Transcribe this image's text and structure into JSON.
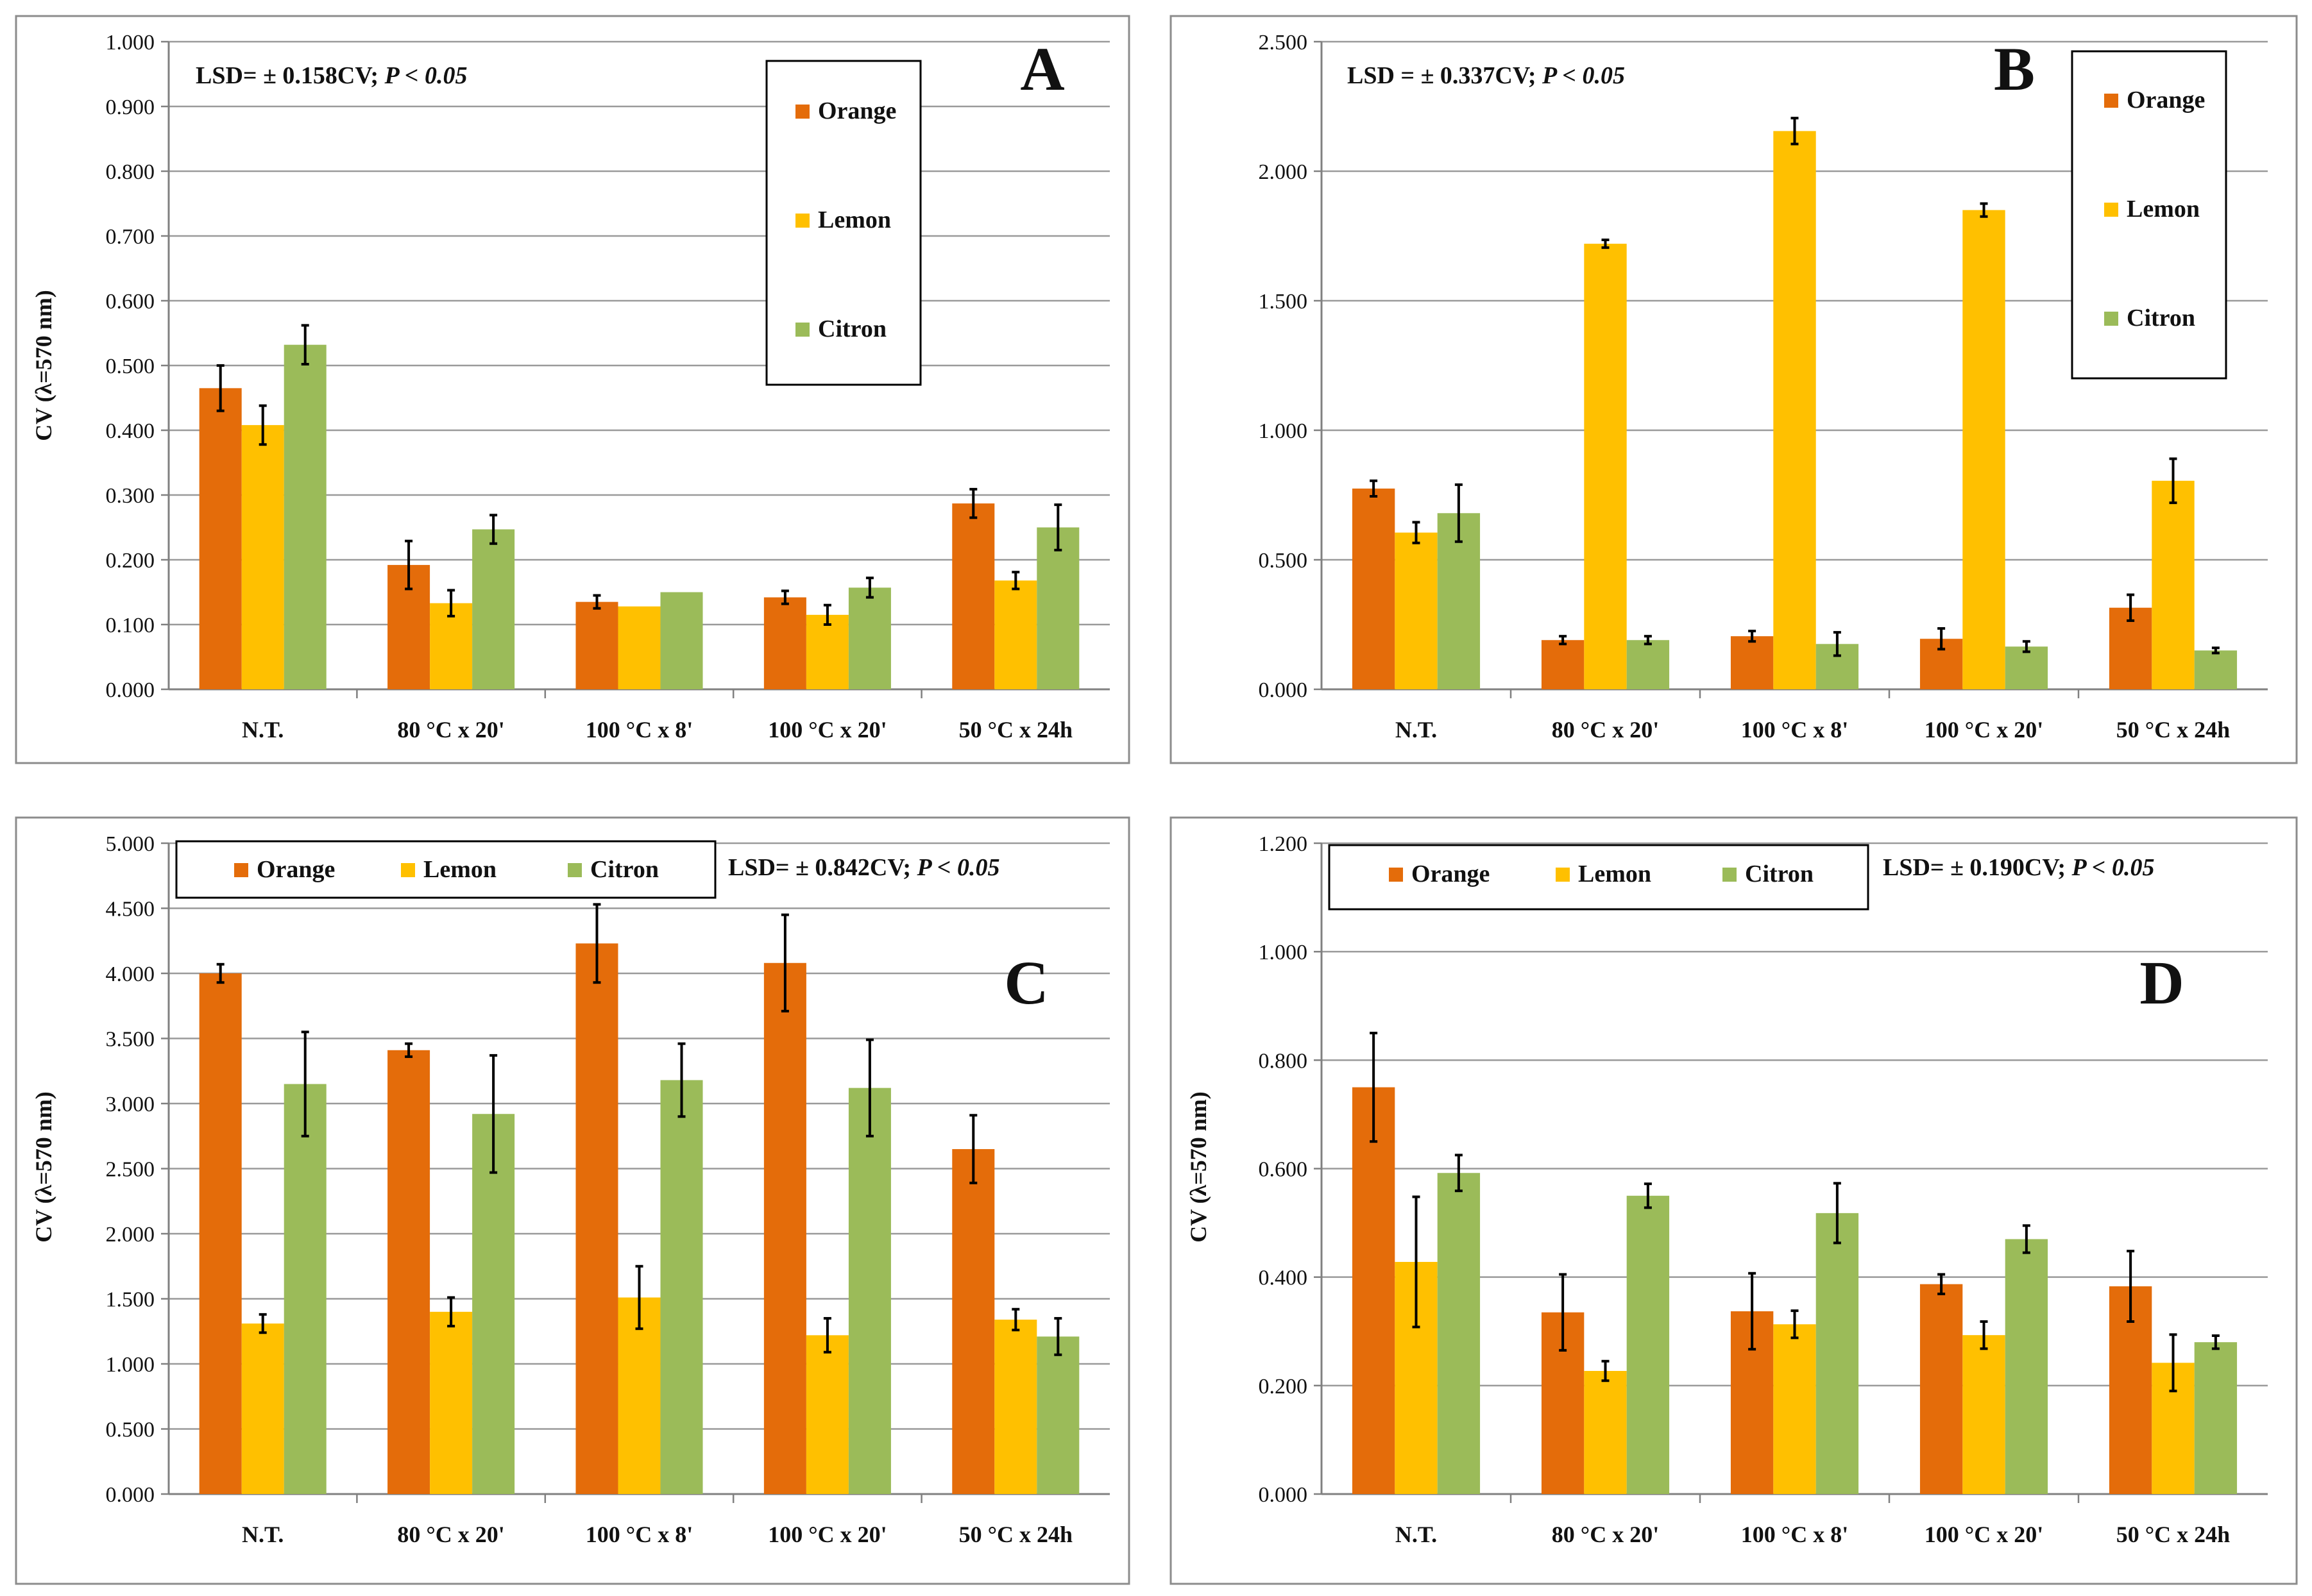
{
  "colors": {
    "Orange": "#e46c0a",
    "Lemon": "#ffc000",
    "Citron": "#9bbb59"
  },
  "series_names": [
    "Orange",
    "Lemon",
    "Citron"
  ],
  "chart_data": [
    {
      "type": "bar",
      "panel": "A",
      "lsd_text": "LSD= ± 0.158CV;",
      "p_text": "P < 0.05",
      "ylabel": "CV (λ=570 nm)",
      "ylim": [
        0,
        1.0
      ],
      "yticks": [
        "0.000",
        "0.100",
        "0.200",
        "0.300",
        "0.400",
        "0.500",
        "0.600",
        "0.700",
        "0.800",
        "0.900",
        "1.000"
      ],
      "categories": [
        "N.T.",
        "80 °C x 20'",
        "100 °C x 8'",
        "100 °C x 20'",
        "50 °C x 24h"
      ],
      "legend": "top-right-vertical",
      "series": [
        {
          "name": "Orange",
          "values": [
            0.465,
            0.192,
            0.135,
            0.142,
            0.287
          ],
          "errors": [
            0.035,
            0.037,
            0.01,
            0.01,
            0.022
          ]
        },
        {
          "name": "Lemon",
          "values": [
            0.408,
            0.133,
            0.128,
            0.115,
            0.168
          ],
          "errors": [
            0.03,
            0.02,
            0.0,
            0.015,
            0.013
          ]
        },
        {
          "name": "Citron",
          "values": [
            0.532,
            0.247,
            0.15,
            0.157,
            0.25
          ],
          "errors": [
            0.03,
            0.022,
            0.0,
            0.015,
            0.035
          ]
        }
      ]
    },
    {
      "type": "bar",
      "panel": "B",
      "lsd_text": "LSD = ± 0.337CV;",
      "p_text": "P < 0.05",
      "ylabel": "",
      "ylim": [
        0,
        2.5
      ],
      "yticks": [
        "0.000",
        "0.500",
        "1.000",
        "1.500",
        "2.000",
        "2.500"
      ],
      "categories": [
        "N.T.",
        "80 °C x 20'",
        "100 °C x 8'",
        "100 °C x 20'",
        "50 °C x 24h"
      ],
      "legend": "top-right-vertical",
      "series": [
        {
          "name": "Orange",
          "values": [
            0.775,
            0.19,
            0.205,
            0.195,
            0.315
          ],
          "errors": [
            0.03,
            0.015,
            0.02,
            0.04,
            0.05
          ]
        },
        {
          "name": "Lemon",
          "values": [
            0.605,
            1.72,
            2.155,
            1.85,
            0.805
          ],
          "errors": [
            0.04,
            0.015,
            0.05,
            0.025,
            0.085
          ]
        },
        {
          "name": "Citron",
          "values": [
            0.68,
            0.19,
            0.175,
            0.165,
            0.15
          ],
          "errors": [
            0.11,
            0.015,
            0.045,
            0.02,
            0.01
          ]
        }
      ]
    },
    {
      "type": "bar",
      "panel": "C",
      "lsd_text": "LSD= ± 0.842CV;",
      "p_text": "P < 0.05",
      "ylabel": "CV (λ=570 nm)",
      "ylim": [
        0,
        5.0
      ],
      "yticks": [
        "0.000",
        "0.500",
        "1.000",
        "1.500",
        "2.000",
        "2.500",
        "3.000",
        "3.500",
        "4.000",
        "4.500",
        "5.000"
      ],
      "categories": [
        "N.T.",
        "80 °C x 20'",
        "100 °C x 8'",
        "100 °C x 20'",
        "50 °C x 24h"
      ],
      "legend": "top-horizontal",
      "series": [
        {
          "name": "Orange",
          "values": [
            4.0,
            3.41,
            4.23,
            4.08,
            2.65
          ],
          "errors": [
            0.07,
            0.05,
            0.3,
            0.37,
            0.26
          ]
        },
        {
          "name": "Lemon",
          "values": [
            1.31,
            1.4,
            1.51,
            1.22,
            1.34
          ],
          "errors": [
            0.07,
            0.11,
            0.24,
            0.13,
            0.08
          ]
        },
        {
          "name": "Citron",
          "values": [
            3.15,
            2.92,
            3.18,
            3.12,
            1.21
          ],
          "errors": [
            0.4,
            0.45,
            0.28,
            0.37,
            0.14
          ]
        }
      ]
    },
    {
      "type": "bar",
      "panel": "D",
      "lsd_text": "LSD= ± 0.190CV;",
      "p_text": "P < 0.05",
      "ylabel": "CV (λ=570 nm)",
      "ylim": [
        0,
        1.2
      ],
      "yticks": [
        "0.000",
        "0.200",
        "0.400",
        "0.600",
        "0.800",
        "1.000",
        "1.200"
      ],
      "categories": [
        "N.T.",
        "80 °C x 20'",
        "100 °C x 8'",
        "100 °C x 20'",
        "50 °C x 24h"
      ],
      "legend": "top-horizontal",
      "series": [
        {
          "name": "Orange",
          "values": [
            0.75,
            0.335,
            0.337,
            0.387,
            0.383
          ],
          "errors": [
            0.1,
            0.07,
            0.07,
            0.018,
            0.065
          ]
        },
        {
          "name": "Lemon",
          "values": [
            0.428,
            0.227,
            0.313,
            0.293,
            0.242
          ],
          "errors": [
            0.12,
            0.018,
            0.025,
            0.025,
            0.052
          ]
        },
        {
          "name": "Citron",
          "values": [
            0.592,
            0.55,
            0.518,
            0.47,
            0.28
          ],
          "errors": [
            0.033,
            0.022,
            0.055,
            0.025,
            0.012
          ]
        }
      ]
    }
  ]
}
